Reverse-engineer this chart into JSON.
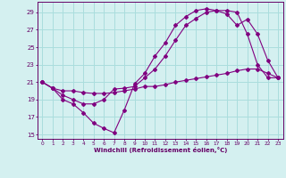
{
  "xlabel": "Windchill (Refroidissement éolien,°C)",
  "background_color": "#d4f0f0",
  "line_color": "#800080",
  "grid_color": "#aadddd",
  "xlim": [
    -0.5,
    23.5
  ],
  "ylim": [
    14.5,
    30.2
  ],
  "xticks": [
    0,
    1,
    2,
    3,
    4,
    5,
    6,
    7,
    8,
    9,
    10,
    11,
    12,
    13,
    14,
    15,
    16,
    17,
    18,
    19,
    20,
    21,
    22,
    23
  ],
  "yticks": [
    15,
    17,
    19,
    21,
    23,
    25,
    27,
    29
  ],
  "line1_x": [
    0,
    1,
    2,
    3,
    4,
    5,
    6,
    7,
    8,
    9,
    10,
    11,
    12,
    13,
    14,
    15,
    16,
    17,
    18,
    19,
    20,
    21,
    22,
    23
  ],
  "line1_y": [
    21.0,
    20.3,
    19.0,
    18.5,
    17.5,
    16.3,
    15.7,
    15.2,
    17.8,
    20.8,
    22.0,
    24.0,
    25.5,
    27.5,
    28.5,
    29.2,
    29.4,
    29.2,
    29.2,
    29.0,
    26.5,
    23.0,
    21.5,
    21.5
  ],
  "line2_x": [
    0,
    1,
    2,
    3,
    4,
    5,
    6,
    7,
    8,
    9,
    10,
    11,
    12,
    13,
    14,
    15,
    16,
    17,
    18,
    19,
    20,
    21,
    22,
    23
  ],
  "line2_y": [
    21.0,
    20.3,
    19.5,
    19.0,
    18.5,
    18.5,
    19.0,
    20.2,
    20.3,
    20.5,
    21.5,
    22.5,
    24.0,
    25.8,
    27.5,
    28.3,
    29.0,
    29.2,
    28.8,
    27.5,
    28.2,
    26.5,
    23.5,
    21.5
  ],
  "line3_x": [
    0,
    1,
    2,
    3,
    4,
    5,
    6,
    7,
    8,
    9,
    10,
    11,
    12,
    13,
    14,
    15,
    16,
    17,
    18,
    19,
    20,
    21,
    22,
    23
  ],
  "line3_y": [
    21.0,
    20.3,
    20.0,
    20.0,
    19.8,
    19.7,
    19.7,
    19.8,
    20.0,
    20.2,
    20.5,
    20.5,
    20.7,
    21.0,
    21.2,
    21.4,
    21.6,
    21.8,
    22.0,
    22.3,
    22.5,
    22.5,
    22.0,
    21.5
  ]
}
